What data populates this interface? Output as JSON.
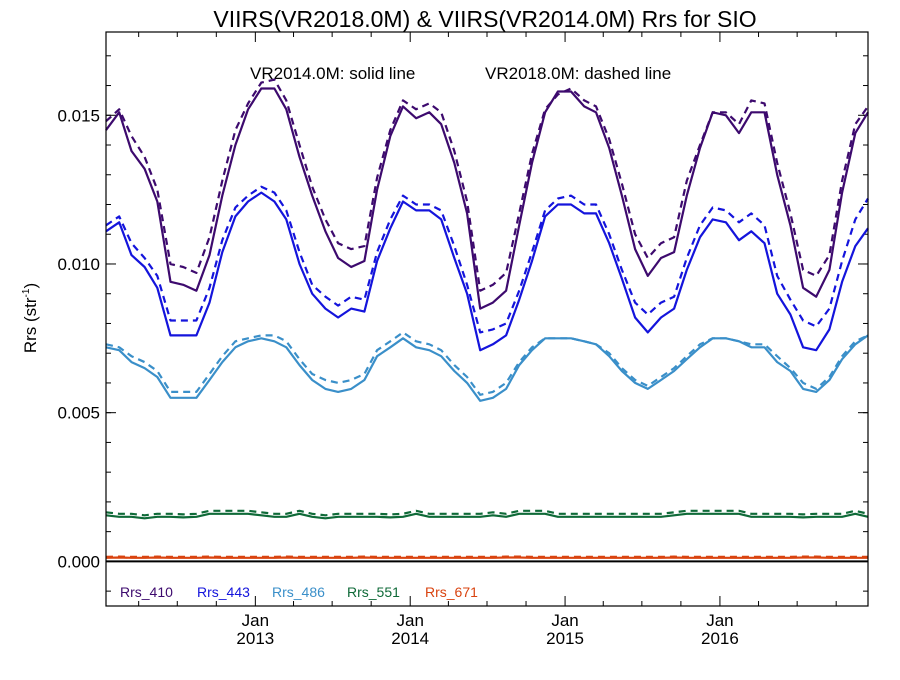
{
  "chart_data": {
    "type": "line",
    "title": "VIIRS(VR2018.0M) & VIIRS(VR2014.0M)  Rrs for SIO",
    "annotations": {
      "solid": "VR2014.0M: solid line",
      "dashed": "VR2018.0M: dashed line"
    },
    "ylabel": "Rrs (str",
    "ylabel_sup": "-1",
    "ylabel_close": ")",
    "ylim": [
      -0.0015,
      0.0178
    ],
    "xlim": [
      "2012-01-15",
      "2016-12-15"
    ],
    "yticks": [
      {
        "value": 0.0,
        "label": "0.000"
      },
      {
        "value": 0.005,
        "label": "0.005"
      },
      {
        "value": 0.01,
        "label": "0.010"
      },
      {
        "value": 0.015,
        "label": "0.015"
      }
    ],
    "xticks": [
      {
        "date": "2013-01-01",
        "label1": "Jan",
        "label2": "2013"
      },
      {
        "date": "2014-01-01",
        "label1": "Jan",
        "label2": "2014"
      },
      {
        "date": "2015-01-01",
        "label1": "Jan",
        "label2": "2015"
      },
      {
        "date": "2016-01-01",
        "label1": "Jan",
        "label2": "2016"
      }
    ],
    "x": [
      "2012-01",
      "2012-02",
      "2012-03",
      "2012-04",
      "2012-05",
      "2012-06",
      "2012-07",
      "2012-08",
      "2012-09",
      "2012-10",
      "2012-11",
      "2012-12",
      "2013-01",
      "2013-02",
      "2013-03",
      "2013-04",
      "2013-05",
      "2013-06",
      "2013-07",
      "2013-08",
      "2013-09",
      "2013-10",
      "2013-11",
      "2013-12",
      "2014-01",
      "2014-02",
      "2014-03",
      "2014-04",
      "2014-05",
      "2014-06",
      "2014-07",
      "2014-08",
      "2014-09",
      "2014-10",
      "2014-11",
      "2014-12",
      "2015-01",
      "2015-02",
      "2015-03",
      "2015-04",
      "2015-05",
      "2015-06",
      "2015-07",
      "2015-08",
      "2015-09",
      "2015-10",
      "2015-11",
      "2015-12",
      "2016-01",
      "2016-02",
      "2016-03",
      "2016-04",
      "2016-05",
      "2016-06",
      "2016-07",
      "2016-08",
      "2016-09",
      "2016-10",
      "2016-11",
      "2016-12"
    ],
    "legend_placement": "bottom-left",
    "zero_line": {
      "value": 0,
      "color": "#000000"
    },
    "series": [
      {
        "name": "Rrs_410",
        "color": "#3d0a6e",
        "style": "solid",
        "values": [
          0.0145,
          0.0151,
          0.0138,
          0.0132,
          0.0121,
          0.0094,
          0.0093,
          0.0091,
          0.0103,
          0.0123,
          0.014,
          0.0152,
          0.0159,
          0.0159,
          0.0152,
          0.0136,
          0.0123,
          0.0111,
          0.0102,
          0.0099,
          0.0101,
          0.0125,
          0.0143,
          0.0153,
          0.0149,
          0.0151,
          0.0147,
          0.0134,
          0.0117,
          0.0085,
          0.0087,
          0.0091,
          0.0113,
          0.0134,
          0.0151,
          0.0158,
          0.0158,
          0.0153,
          0.0151,
          0.0139,
          0.0123,
          0.0105,
          0.0096,
          0.0102,
          0.0104,
          0.0123,
          0.0139,
          0.0151,
          0.015,
          0.0144,
          0.0151,
          0.0151,
          0.013,
          0.0113,
          0.0092,
          0.0089,
          0.0098,
          0.0124,
          0.0144,
          0.0151
        ]
      },
      {
        "name": "Rrs_410 (VR2018.0M)",
        "color": "#3d0a6e",
        "style": "dashed",
        "values": [
          0.0148,
          0.0152,
          0.0143,
          0.0136,
          0.0125,
          0.01,
          0.0099,
          0.0097,
          0.0109,
          0.0128,
          0.0145,
          0.0154,
          0.0161,
          0.0162,
          0.0155,
          0.014,
          0.0126,
          0.0115,
          0.0107,
          0.0105,
          0.0106,
          0.0129,
          0.0145,
          0.0155,
          0.0152,
          0.0154,
          0.0151,
          0.0138,
          0.0121,
          0.0091,
          0.0093,
          0.0097,
          0.0117,
          0.0137,
          0.0152,
          0.0157,
          0.0159,
          0.0155,
          0.0153,
          0.0142,
          0.0127,
          0.011,
          0.0102,
          0.0107,
          0.0109,
          0.0128,
          0.014,
          0.0151,
          0.0151,
          0.0147,
          0.0155,
          0.0154,
          0.0134,
          0.0117,
          0.0098,
          0.0096,
          0.0103,
          0.0128,
          0.0147,
          0.0153
        ]
      },
      {
        "name": "Rrs_443",
        "color": "#1414dc",
        "style": "solid",
        "values": [
          0.0111,
          0.0114,
          0.0103,
          0.0099,
          0.0092,
          0.0076,
          0.0076,
          0.0076,
          0.0087,
          0.0104,
          0.0116,
          0.0121,
          0.0124,
          0.0121,
          0.0115,
          0.01,
          0.009,
          0.0085,
          0.0082,
          0.0085,
          0.0084,
          0.0101,
          0.0112,
          0.0121,
          0.0118,
          0.0118,
          0.0115,
          0.0102,
          0.009,
          0.0071,
          0.0073,
          0.0076,
          0.0088,
          0.0101,
          0.0116,
          0.012,
          0.012,
          0.0117,
          0.0117,
          0.0107,
          0.0095,
          0.0082,
          0.0077,
          0.0082,
          0.0085,
          0.0098,
          0.0109,
          0.0115,
          0.0114,
          0.0108,
          0.0111,
          0.0107,
          0.009,
          0.0083,
          0.0072,
          0.0071,
          0.0078,
          0.0094,
          0.0106,
          0.0112
        ]
      },
      {
        "name": "Rrs_443 (VR2018.0M)",
        "color": "#1414dc",
        "style": "dashed",
        "values": [
          0.0113,
          0.0116,
          0.0107,
          0.0102,
          0.0096,
          0.0081,
          0.0081,
          0.0081,
          0.0092,
          0.0108,
          0.0119,
          0.0123,
          0.0126,
          0.0124,
          0.0118,
          0.0104,
          0.0093,
          0.0089,
          0.0086,
          0.0089,
          0.0088,
          0.0104,
          0.0115,
          0.0123,
          0.012,
          0.012,
          0.0118,
          0.0106,
          0.0093,
          0.0077,
          0.0078,
          0.008,
          0.0091,
          0.0104,
          0.0118,
          0.0122,
          0.0123,
          0.012,
          0.012,
          0.011,
          0.0098,
          0.0087,
          0.0083,
          0.0087,
          0.0089,
          0.0102,
          0.0113,
          0.0119,
          0.0118,
          0.0114,
          0.0117,
          0.0113,
          0.0096,
          0.0088,
          0.0081,
          0.0079,
          0.0085,
          0.0101,
          0.0115,
          0.0122
        ]
      },
      {
        "name": "Rrs_486",
        "color": "#3a8fc9",
        "style": "solid",
        "values": [
          0.0072,
          0.0071,
          0.0067,
          0.0065,
          0.0062,
          0.0055,
          0.0055,
          0.0055,
          0.0061,
          0.0067,
          0.0072,
          0.0074,
          0.0075,
          0.0074,
          0.0072,
          0.0066,
          0.0061,
          0.0058,
          0.0057,
          0.0058,
          0.0061,
          0.0069,
          0.0072,
          0.0075,
          0.0072,
          0.0071,
          0.0069,
          0.0064,
          0.006,
          0.0054,
          0.0055,
          0.0058,
          0.0066,
          0.0071,
          0.0075,
          0.0075,
          0.0075,
          0.0074,
          0.0073,
          0.0069,
          0.0064,
          0.006,
          0.0058,
          0.0061,
          0.0064,
          0.0068,
          0.0072,
          0.0075,
          0.0075,
          0.0074,
          0.0072,
          0.0072,
          0.0067,
          0.0064,
          0.0058,
          0.0057,
          0.0061,
          0.0068,
          0.0073,
          0.0076
        ]
      },
      {
        "name": "Rrs_486 (VR2018.0M)",
        "color": "#3a8fc9",
        "style": "dashed",
        "values": [
          0.0073,
          0.0072,
          0.0069,
          0.0067,
          0.0064,
          0.0057,
          0.0057,
          0.0057,
          0.0063,
          0.0069,
          0.0074,
          0.0075,
          0.0076,
          0.0076,
          0.0074,
          0.0068,
          0.0063,
          0.0061,
          0.006,
          0.0061,
          0.0063,
          0.0071,
          0.0074,
          0.0077,
          0.0074,
          0.0073,
          0.0071,
          0.0066,
          0.0062,
          0.0056,
          0.0057,
          0.006,
          0.0067,
          0.0072,
          0.0075,
          0.0075,
          0.0075,
          0.0074,
          0.0073,
          0.007,
          0.0065,
          0.0061,
          0.0059,
          0.0062,
          0.0065,
          0.0069,
          0.0073,
          0.0075,
          0.0075,
          0.0074,
          0.0073,
          0.0073,
          0.0069,
          0.0065,
          0.006,
          0.0058,
          0.0062,
          0.0069,
          0.0074,
          0.0076
        ]
      },
      {
        "name": "Rrs_551",
        "color": "#0f6a38",
        "style": "solid",
        "values": [
          0.00155,
          0.0015,
          0.0015,
          0.00145,
          0.0015,
          0.0015,
          0.00148,
          0.0015,
          0.0016,
          0.0016,
          0.0016,
          0.0016,
          0.00155,
          0.0015,
          0.0015,
          0.0016,
          0.0015,
          0.00145,
          0.0015,
          0.0015,
          0.0015,
          0.0015,
          0.00148,
          0.0015,
          0.0016,
          0.0015,
          0.0015,
          0.0015,
          0.0015,
          0.0015,
          0.00155,
          0.0015,
          0.0016,
          0.0016,
          0.0016,
          0.0015,
          0.0015,
          0.0015,
          0.0015,
          0.0015,
          0.0015,
          0.0015,
          0.0015,
          0.0015,
          0.00155,
          0.0016,
          0.0016,
          0.0016,
          0.0016,
          0.0016,
          0.0015,
          0.0015,
          0.0015,
          0.0015,
          0.00148,
          0.0015,
          0.0015,
          0.0015,
          0.0016,
          0.0015
        ]
      },
      {
        "name": "Rrs_551 (VR2018.0M)",
        "color": "#0f6a38",
        "style": "dashed",
        "values": [
          0.00165,
          0.0016,
          0.0016,
          0.00155,
          0.0016,
          0.0016,
          0.00158,
          0.0016,
          0.0017,
          0.0017,
          0.0017,
          0.0017,
          0.00165,
          0.0016,
          0.0016,
          0.0017,
          0.0016,
          0.00155,
          0.0016,
          0.0016,
          0.0016,
          0.0016,
          0.00158,
          0.0016,
          0.0017,
          0.0016,
          0.0016,
          0.0016,
          0.0016,
          0.0016,
          0.00165,
          0.0016,
          0.0017,
          0.0017,
          0.0017,
          0.0016,
          0.0016,
          0.0016,
          0.0016,
          0.0016,
          0.0016,
          0.0016,
          0.0016,
          0.0016,
          0.00165,
          0.0017,
          0.0017,
          0.0017,
          0.0017,
          0.0017,
          0.0016,
          0.0016,
          0.0016,
          0.0016,
          0.00158,
          0.0016,
          0.0016,
          0.0016,
          0.0017,
          0.0016
        ]
      },
      {
        "name": "Rrs_671",
        "color": "#d9430f",
        "style": "solid",
        "values": [
          0.00012,
          0.00013,
          0.00012,
          0.00012,
          0.00013,
          0.00012,
          0.00012,
          0.00012,
          0.00013,
          0.00012,
          0.00012,
          0.00012,
          0.00012,
          0.00012,
          0.00013,
          0.00012,
          0.00012,
          0.00012,
          0.00012,
          0.00012,
          0.00013,
          0.00012,
          0.00012,
          0.00012,
          0.00012,
          0.00012,
          0.00012,
          0.00012,
          0.00012,
          0.00012,
          0.00012,
          0.00013,
          0.00013,
          0.00012,
          0.00012,
          0.00012,
          0.00012,
          0.00012,
          0.00012,
          0.00012,
          0.00012,
          0.00012,
          0.00012,
          0.00012,
          0.00013,
          0.00012,
          0.00012,
          0.00012,
          0.00012,
          0.00012,
          0.00012,
          0.00012,
          0.00012,
          0.00012,
          0.00013,
          0.00013,
          0.00012,
          0.00012,
          0.00012,
          0.00012
        ]
      },
      {
        "name": "Rrs_671 (VR2018.0M)",
        "color": "#d9430f",
        "style": "dashed",
        "values": [
          0.00015,
          0.00016,
          0.00015,
          0.00015,
          0.00016,
          0.00015,
          0.00015,
          0.00015,
          0.00016,
          0.00015,
          0.00015,
          0.00015,
          0.00015,
          0.00015,
          0.00016,
          0.00015,
          0.00015,
          0.00015,
          0.00015,
          0.00015,
          0.00016,
          0.00015,
          0.00015,
          0.00015,
          0.00015,
          0.00015,
          0.00015,
          0.00015,
          0.00015,
          0.00015,
          0.00015,
          0.00016,
          0.00016,
          0.00015,
          0.00015,
          0.00015,
          0.00015,
          0.00015,
          0.00015,
          0.00015,
          0.00015,
          0.00015,
          0.00015,
          0.00015,
          0.00016,
          0.00015,
          0.00015,
          0.00015,
          0.00015,
          0.00015,
          0.00015,
          0.00015,
          0.00015,
          0.00015,
          0.00016,
          0.00016,
          0.00015,
          0.00015,
          0.00015,
          0.00015
        ]
      }
    ],
    "legend": [
      {
        "label": "Rrs_410",
        "color": "#3d0a6e"
      },
      {
        "label": "Rrs_443",
        "color": "#1414dc"
      },
      {
        "label": "Rrs_486",
        "color": "#3a8fc9"
      },
      {
        "label": "Rrs_551",
        "color": "#0f6a38"
      },
      {
        "label": "Rrs_671",
        "color": "#d9430f"
      }
    ]
  }
}
